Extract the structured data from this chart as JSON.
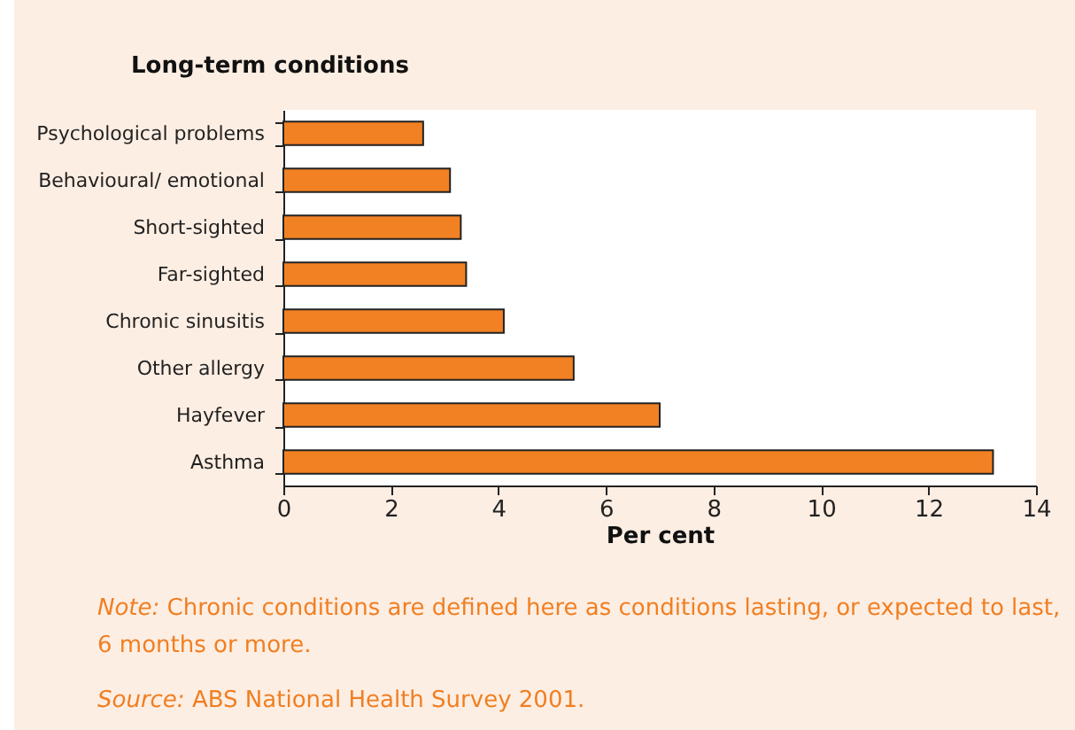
{
  "chart_data": {
    "type": "bar",
    "orientation": "horizontal",
    "title": "Long-term conditions",
    "xlabel": "Per cent",
    "categories": [
      "Psychological problems",
      "Behavioural/ emotional",
      "Short-sighted",
      "Far-sighted",
      "Chronic sinusitis",
      "Other allergy",
      "Hayfever",
      "Asthma"
    ],
    "values": [
      2.6,
      3.1,
      3.3,
      3.4,
      4.1,
      5.4,
      7.0,
      13.2
    ],
    "color": "#f28123",
    "xlim": [
      0,
      14
    ],
    "xticks": [
      0,
      2,
      4,
      6,
      8,
      10,
      12,
      14
    ],
    "grid": false,
    "annotations": [
      "Note: Chronic conditions are defined here as conditions lasting, or expected to last, 6 months or more.",
      "Source: ABS National Health Survey 2001."
    ]
  }
}
